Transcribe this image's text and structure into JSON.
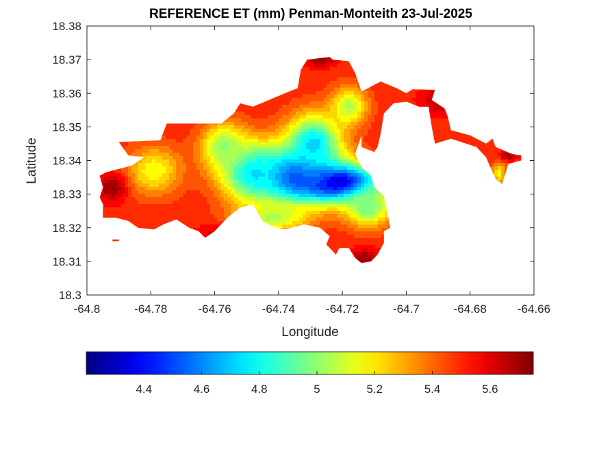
{
  "chart_data": {
    "type": "heatmap",
    "title": "REFERENCE ET (mm) Penman-Monteith 23-Jul-2025",
    "xlabel": "Longitude",
    "ylabel": "Latitude",
    "xlim": [
      -64.8,
      -64.66
    ],
    "ylim": [
      18.3,
      18.38
    ],
    "xticks": [
      -64.8,
      -64.78,
      -64.76,
      -64.74,
      -64.72,
      -64.7,
      -64.68,
      -64.66
    ],
    "xtick_labels": [
      "-64.8",
      "-64.78",
      "-64.76",
      "-64.74",
      "-64.72",
      "-64.7",
      "-64.68",
      "-64.66"
    ],
    "yticks": [
      18.3,
      18.31,
      18.32,
      18.33,
      18.34,
      18.35,
      18.36,
      18.37,
      18.38
    ],
    "ytick_labels": [
      "18.3",
      "18.31",
      "18.32",
      "18.33",
      "18.34",
      "18.35",
      "18.36",
      "18.37",
      "18.38"
    ],
    "grid": false,
    "colormap": "jet",
    "colorbar": {
      "orientation": "horizontal",
      "range": [
        4.2,
        5.75
      ],
      "ticks": [
        4.4,
        4.6,
        4.8,
        5,
        5.2,
        5.4,
        5.6
      ],
      "tick_labels": [
        "4.4",
        "4.6",
        "4.8",
        "5",
        "5.2",
        "5.4",
        "5.6"
      ]
    },
    "field": {
      "background": 5.5,
      "min": 4.2,
      "max": 5.75,
      "sources": [
        {
          "lon": -64.722,
          "lat": 18.3335,
          "value": 4.25,
          "slon": 0.01,
          "slat": 0.0042
        },
        {
          "lon": -64.735,
          "lat": 18.3355,
          "value": 4.45,
          "slon": 0.008,
          "slat": 0.0055
        },
        {
          "lon": -64.748,
          "lat": 18.3365,
          "value": 4.72,
          "slon": 0.007,
          "slat": 0.006
        },
        {
          "lon": -64.729,
          "lat": 18.345,
          "value": 4.72,
          "slon": 0.006,
          "slat": 0.006
        },
        {
          "lon": -64.712,
          "lat": 18.326,
          "value": 4.95,
          "slon": 0.005,
          "slat": 0.004
        },
        {
          "lon": -64.757,
          "lat": 18.344,
          "value": 5.0,
          "slon": 0.005,
          "slat": 0.005
        },
        {
          "lon": -64.742,
          "lat": 18.323,
          "value": 5.05,
          "slon": 0.008,
          "slat": 0.003
        },
        {
          "lon": -64.779,
          "lat": 18.337,
          "value": 5.15,
          "slon": 0.006,
          "slat": 0.005
        },
        {
          "lon": -64.718,
          "lat": 18.356,
          "value": 5.05,
          "slon": 0.004,
          "slat": 0.004
        },
        {
          "lon": -64.671,
          "lat": 18.336,
          "value": 5.18,
          "slon": 0.0015,
          "slat": 0.0025
        },
        {
          "lon": -64.792,
          "lat": 18.332,
          "value": 5.72,
          "slon": 0.003,
          "slat": 0.003
        },
        {
          "lon": -64.727,
          "lat": 18.37,
          "value": 5.72,
          "slon": 0.003,
          "slat": 0.0015
        },
        {
          "lon": -64.713,
          "lat": 18.311,
          "value": 5.7,
          "slon": 0.003,
          "slat": 0.002
        },
        {
          "lon": -64.69,
          "lat": 18.358,
          "value": 5.65,
          "slon": 0.004,
          "slat": 0.003
        },
        {
          "lon": -64.668,
          "lat": 18.3415,
          "value": 5.7,
          "slon": 0.002,
          "slat": 0.001
        },
        {
          "lon": -64.76,
          "lat": 18.318,
          "value": 5.62,
          "slon": 0.004,
          "slat": 0.002
        }
      ]
    },
    "region_outline": [
      [
        -64.794,
        18.3365
      ],
      [
        -64.786,
        18.3385
      ],
      [
        -64.782,
        18.341
      ],
      [
        -64.787,
        18.3415
      ],
      [
        -64.79,
        18.3455
      ],
      [
        -64.777,
        18.346
      ],
      [
        -64.775,
        18.351
      ],
      [
        -64.758,
        18.351
      ],
      [
        -64.754,
        18.354
      ],
      [
        -64.752,
        18.357
      ],
      [
        -64.748,
        18.356
      ],
      [
        -64.743,
        18.358
      ],
      [
        -64.738,
        18.36
      ],
      [
        -64.734,
        18.3615
      ],
      [
        -64.733,
        18.367
      ],
      [
        -64.731,
        18.37
      ],
      [
        -64.724,
        18.3708
      ],
      [
        -64.723,
        18.37
      ],
      [
        -64.718,
        18.3695
      ],
      [
        -64.716,
        18.366
      ],
      [
        -64.714,
        18.3605
      ],
      [
        -64.708,
        18.3635
      ],
      [
        -64.703,
        18.3615
      ],
      [
        -64.7,
        18.36
      ],
      [
        -64.698,
        18.3612
      ],
      [
        -64.691,
        18.361
      ],
      [
        -64.692,
        18.358
      ],
      [
        -64.688,
        18.3555
      ],
      [
        -64.687,
        18.353
      ],
      [
        -64.686,
        18.349
      ],
      [
        -64.68,
        18.3475
      ],
      [
        -64.675,
        18.345
      ],
      [
        -64.673,
        18.3465
      ],
      [
        -64.672,
        18.344
      ],
      [
        -64.667,
        18.342
      ],
      [
        -64.664,
        18.3415
      ],
      [
        -64.664,
        18.34
      ],
      [
        -64.668,
        18.339
      ],
      [
        -64.67,
        18.333
      ],
      [
        -64.672,
        18.3345
      ],
      [
        -64.675,
        18.341
      ],
      [
        -64.678,
        18.344
      ],
      [
        -64.686,
        18.3465
      ],
      [
        -64.691,
        18.345
      ],
      [
        -64.692,
        18.35
      ],
      [
        -64.693,
        18.356
      ],
      [
        -64.696,
        18.356
      ],
      [
        -64.7,
        18.3575
      ],
      [
        -64.704,
        18.357
      ],
      [
        -64.707,
        18.354
      ],
      [
        -64.708,
        18.348
      ],
      [
        -64.709,
        18.344
      ],
      [
        -64.71,
        18.3425
      ],
      [
        -64.714,
        18.344
      ],
      [
        -64.714,
        18.3475
      ],
      [
        -64.716,
        18.342
      ],
      [
        -64.714,
        18.338
      ],
      [
        -64.711,
        18.3355
      ],
      [
        -64.71,
        18.332
      ],
      [
        -64.707,
        18.3295
      ],
      [
        -64.705,
        18.32
      ],
      [
        -64.707,
        18.319
      ],
      [
        -64.707,
        18.3155
      ],
      [
        -64.709,
        18.312
      ],
      [
        -64.711,
        18.31
      ],
      [
        -64.714,
        18.3095
      ],
      [
        -64.716,
        18.311
      ],
      [
        -64.718,
        18.314
      ],
      [
        -64.721,
        18.314
      ],
      [
        -64.722,
        18.312
      ],
      [
        -64.725,
        18.315
      ],
      [
        -64.724,
        18.3175
      ],
      [
        -64.727,
        18.32
      ],
      [
        -64.732,
        18.321
      ],
      [
        -64.738,
        18.3195
      ],
      [
        -64.742,
        18.3205
      ],
      [
        -64.745,
        18.322
      ],
      [
        -64.748,
        18.327
      ],
      [
        -64.752,
        18.326
      ],
      [
        -64.756,
        18.323
      ],
      [
        -64.76,
        18.319
      ],
      [
        -64.763,
        18.317
      ],
      [
        -64.765,
        18.319
      ],
      [
        -64.768,
        18.32
      ],
      [
        -64.772,
        18.3225
      ],
      [
        -64.776,
        18.321
      ],
      [
        -64.779,
        18.3195
      ],
      [
        -64.784,
        18.32
      ],
      [
        -64.787,
        18.322
      ],
      [
        -64.791,
        18.323
      ],
      [
        -64.795,
        18.323
      ],
      [
        -64.795,
        18.327
      ],
      [
        -64.796,
        18.329
      ],
      [
        -64.795,
        18.332
      ],
      [
        -64.796,
        18.3355
      ]
    ],
    "islands": [
      [
        [
          -64.792,
          18.3165
        ],
        [
          -64.79,
          18.3165
        ],
        [
          -64.79,
          18.316
        ],
        [
          -64.792,
          18.316
        ]
      ]
    ]
  }
}
